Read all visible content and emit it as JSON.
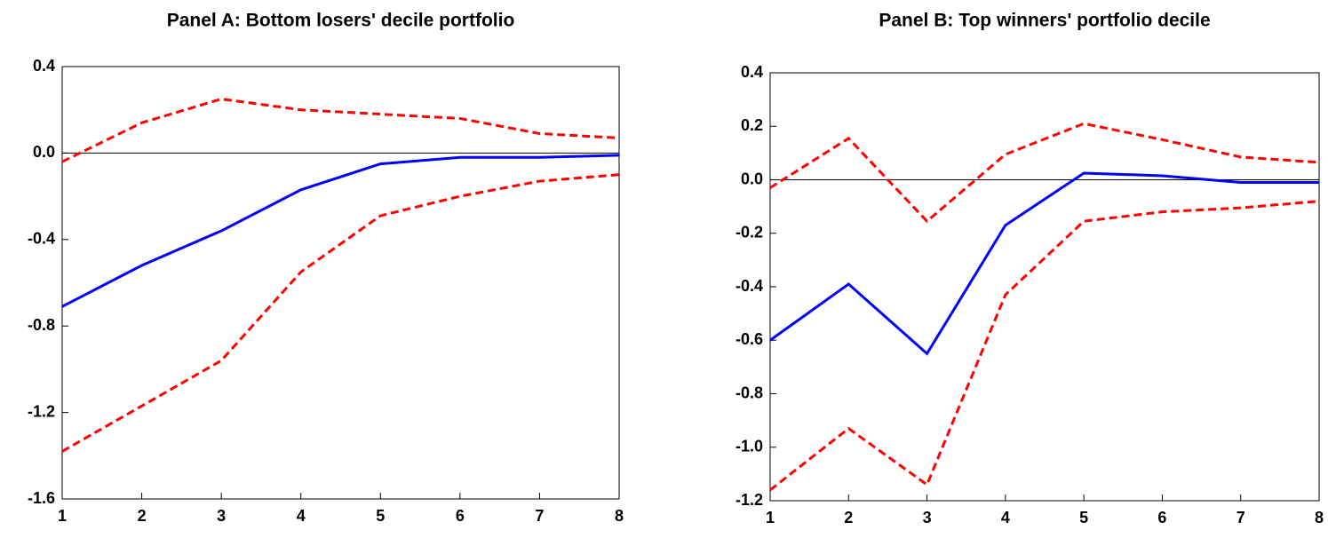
{
  "chart_data": [
    {
      "type": "line",
      "title": "Panel A: Bottom losers' decile portfolio",
      "x": [
        1,
        2,
        3,
        4,
        5,
        6,
        7,
        8
      ],
      "xlim": [
        1,
        8
      ],
      "xticks": [
        1,
        2,
        3,
        4,
        5,
        6,
        7,
        8
      ],
      "ylim": [
        -1.6,
        0.4
      ],
      "yticks": [
        -1.6,
        -1.2,
        -0.8,
        -0.4,
        {
          "value": 0,
          "label": "0.0"
        },
        0.4
      ],
      "hline": 0,
      "series": [
        {
          "color": "#0000ff",
          "dashed": false,
          "values": [
            -0.71,
            -0.52,
            -0.36,
            -0.17,
            -0.05,
            -0.02,
            -0.02,
            -0.01
          ]
        },
        {
          "color": "#ff0000",
          "dashed": true,
          "values": [
            -0.04,
            0.14,
            0.25,
            0.2,
            0.18,
            0.16,
            0.09,
            0.07
          ]
        },
        {
          "color": "#ff0000",
          "dashed": true,
          "values": [
            -1.38,
            -1.17,
            -0.96,
            -0.55,
            -0.29,
            -0.2,
            -0.13,
            -0.1
          ]
        }
      ]
    },
    {
      "type": "line",
      "title": "Panel B: Top winners' portfolio decile",
      "x": [
        1,
        2,
        3,
        4,
        5,
        6,
        7,
        8
      ],
      "xlim": [
        1,
        8
      ],
      "xticks": [
        1,
        2,
        3,
        4,
        5,
        6,
        7,
        8
      ],
      "ylim": [
        -1.2,
        0.4
      ],
      "yticks": [
        -1.2,
        {
          "value": -1,
          "label": "-1.0"
        },
        -0.8,
        -0.6,
        -0.4,
        -0.2,
        {
          "value": 0,
          "label": "0.0"
        },
        0.2,
        0.4
      ],
      "hline": 0,
      "series": [
        {
          "color": "#0000ff",
          "dashed": false,
          "values": [
            -0.6,
            -0.39,
            -0.65,
            -0.17,
            0.025,
            0.015,
            -0.01,
            -0.01
          ]
        },
        {
          "color": "#ff0000",
          "dashed": true,
          "values": [
            -0.03,
            0.155,
            -0.155,
            0.095,
            0.21,
            0.15,
            0.085,
            0.065
          ]
        },
        {
          "color": "#ff0000",
          "dashed": true,
          "values": [
            -1.16,
            -0.93,
            -1.14,
            -0.43,
            -0.155,
            -0.12,
            -0.105,
            -0.08
          ]
        }
      ]
    }
  ]
}
